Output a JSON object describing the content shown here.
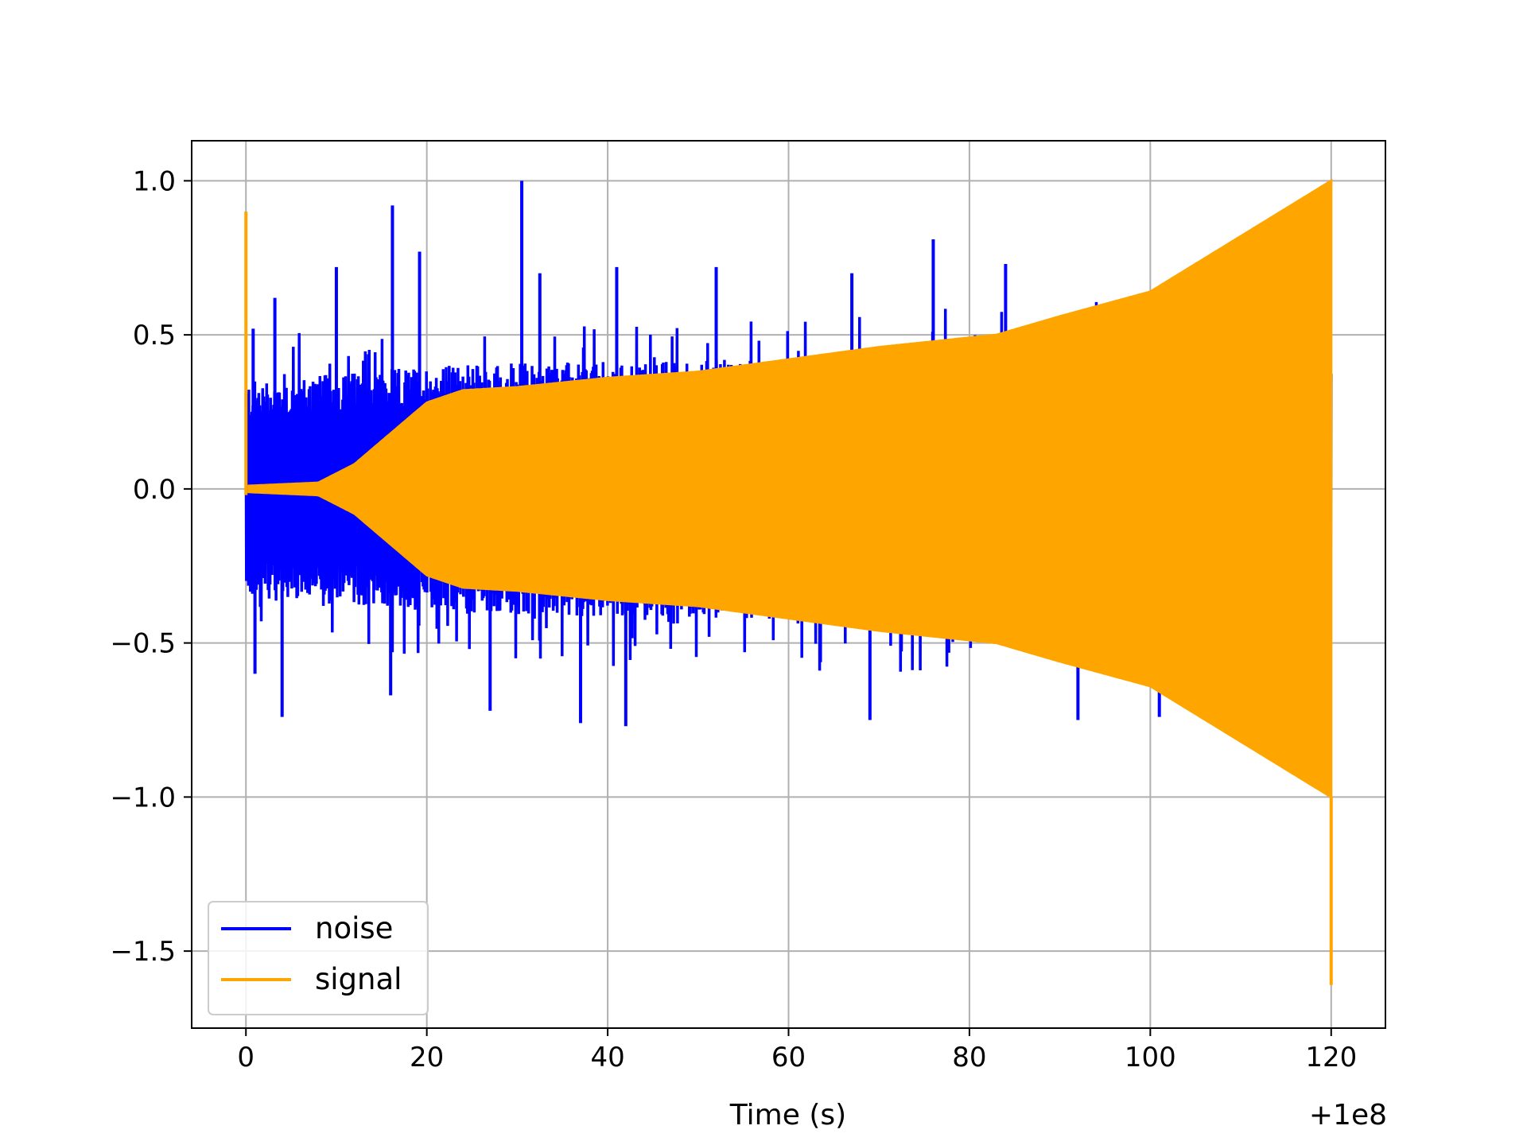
{
  "chart_data": {
    "type": "line",
    "title": "",
    "xlabel": "Time (s)",
    "ylabel": "",
    "x_offset_text": "+1e8",
    "xlim": [
      -6,
      126
    ],
    "ylim": [
      -1.75,
      1.13
    ],
    "xticks": [
      0,
      20,
      40,
      60,
      80,
      100,
      120
    ],
    "xtick_labels": [
      "0",
      "20",
      "40",
      "60",
      "80",
      "100",
      "120"
    ],
    "yticks": [
      1.0,
      0.5,
      0.0,
      -0.5,
      -1.0,
      -1.5
    ],
    "ytick_labels": [
      "1.0",
      "0.5",
      "0.0",
      "−0.5",
      "−1.0",
      "−1.5"
    ],
    "grid": true,
    "legend_position": "lower-left",
    "series": [
      {
        "name": "noise",
        "color": "#0000ff",
        "x_range": [
          0,
          120
        ],
        "typical_envelope": [
          [
            0,
            0.28
          ],
          [
            10,
            0.3
          ],
          [
            20,
            0.32
          ],
          [
            30,
            0.33
          ],
          [
            40,
            0.33
          ],
          [
            60,
            0.34
          ],
          [
            80,
            0.34
          ],
          [
            100,
            0.35
          ],
          [
            120,
            0.35
          ]
        ],
        "peaks": [
          {
            "x": 0.8,
            "y": 0.52
          },
          {
            "x": 3.2,
            "y": 0.62
          },
          {
            "x": 10.0,
            "y": 0.72
          },
          {
            "x": 16.2,
            "y": 0.92
          },
          {
            "x": 19.2,
            "y": 0.77
          },
          {
            "x": 30.5,
            "y": 1.0
          },
          {
            "x": 32.5,
            "y": 0.7
          },
          {
            "x": 41.0,
            "y": 0.72
          },
          {
            "x": 52.0,
            "y": 0.72
          },
          {
            "x": 67.0,
            "y": 0.7
          },
          {
            "x": 76.0,
            "y": 0.81
          },
          {
            "x": 84.0,
            "y": 0.73
          },
          {
            "x": 107.0,
            "y": 0.64
          },
          {
            "x": 1.0,
            "y": -0.6
          },
          {
            "x": 4.0,
            "y": -0.74
          },
          {
            "x": 16.0,
            "y": -0.67
          },
          {
            "x": 27.0,
            "y": -0.72
          },
          {
            "x": 37.0,
            "y": -0.76
          },
          {
            "x": 42.0,
            "y": -0.77
          },
          {
            "x": 69.0,
            "y": -0.75
          },
          {
            "x": 92.0,
            "y": -0.75
          },
          {
            "x": 101.0,
            "y": -0.74
          }
        ]
      },
      {
        "name": "signal",
        "color": "#ffa500",
        "x_range": [
          0,
          120
        ],
        "start_spike": 0.9,
        "end_value": -1.61,
        "envelope": [
          [
            0.3,
            0.01
          ],
          [
            8,
            0.02
          ],
          [
            12,
            0.08
          ],
          [
            16,
            0.18
          ],
          [
            20,
            0.28
          ],
          [
            24,
            0.32
          ],
          [
            30,
            0.33
          ],
          [
            40,
            0.36
          ],
          [
            50,
            0.38
          ],
          [
            60,
            0.42
          ],
          [
            70,
            0.46
          ],
          [
            83,
            0.5
          ],
          [
            90,
            0.56
          ],
          [
            100,
            0.64
          ],
          [
            110,
            0.82
          ],
          [
            120,
            1.0
          ]
        ]
      }
    ]
  }
}
